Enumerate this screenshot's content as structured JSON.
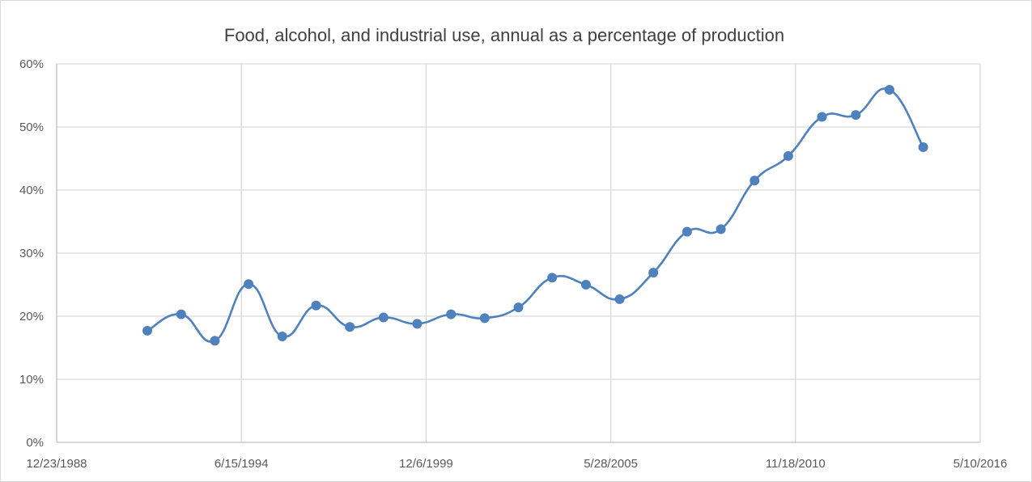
{
  "chart_data": {
    "type": "line",
    "title": "Food, alcohol, and industrial use, annual as a percentage of production",
    "xlabel": "",
    "ylabel": "",
    "x_axis": {
      "kind": "date",
      "min": "1988-12-23",
      "max": "2016-05-10",
      "tick_labels": [
        "12/23/1988",
        "6/15/1994",
        "12/6/1999",
        "5/28/2005",
        "11/18/2010",
        "5/10/2016"
      ],
      "tick_dates": [
        "1988-12-23",
        "1994-06-15",
        "1999-12-06",
        "2005-05-28",
        "2010-11-18",
        "2016-05-10"
      ]
    },
    "y_axis": {
      "min": 0,
      "max": 60,
      "step": 10,
      "tick_labels": [
        "0%",
        "10%",
        "20%",
        "30%",
        "40%",
        "50%",
        "60%"
      ]
    },
    "grid": {
      "horizontal": true,
      "vertical": true
    },
    "legend": "none",
    "colors": {
      "series": "#4f81bd",
      "grid": "#d9d9d9",
      "axis": "#bfbfbf",
      "text": "#595959",
      "title": "#404040"
    },
    "series": [
      {
        "x": [
          "1991-09-01",
          "1992-09-01",
          "1993-09-01",
          "1994-09-01",
          "1995-09-01",
          "1996-09-01",
          "1997-09-01",
          "1998-09-01",
          "1999-09-01",
          "2000-09-01",
          "2001-09-01",
          "2002-09-01",
          "2003-09-01",
          "2004-09-01",
          "2005-09-01",
          "2006-09-01",
          "2007-09-01",
          "2008-09-01",
          "2009-09-01",
          "2010-09-01",
          "2011-09-01",
          "2012-09-01",
          "2013-09-01",
          "2014-09-01"
        ],
        "values": [
          17.7,
          20.3,
          16.1,
          25.1,
          16.8,
          21.7,
          18.3,
          19.8,
          18.8,
          20.3,
          19.7,
          21.4,
          26.1,
          25.0,
          22.7,
          26.9,
          33.4,
          33.8,
          41.5,
          45.4,
          51.6,
          51.9,
          55.9,
          46.8
        ]
      }
    ]
  }
}
